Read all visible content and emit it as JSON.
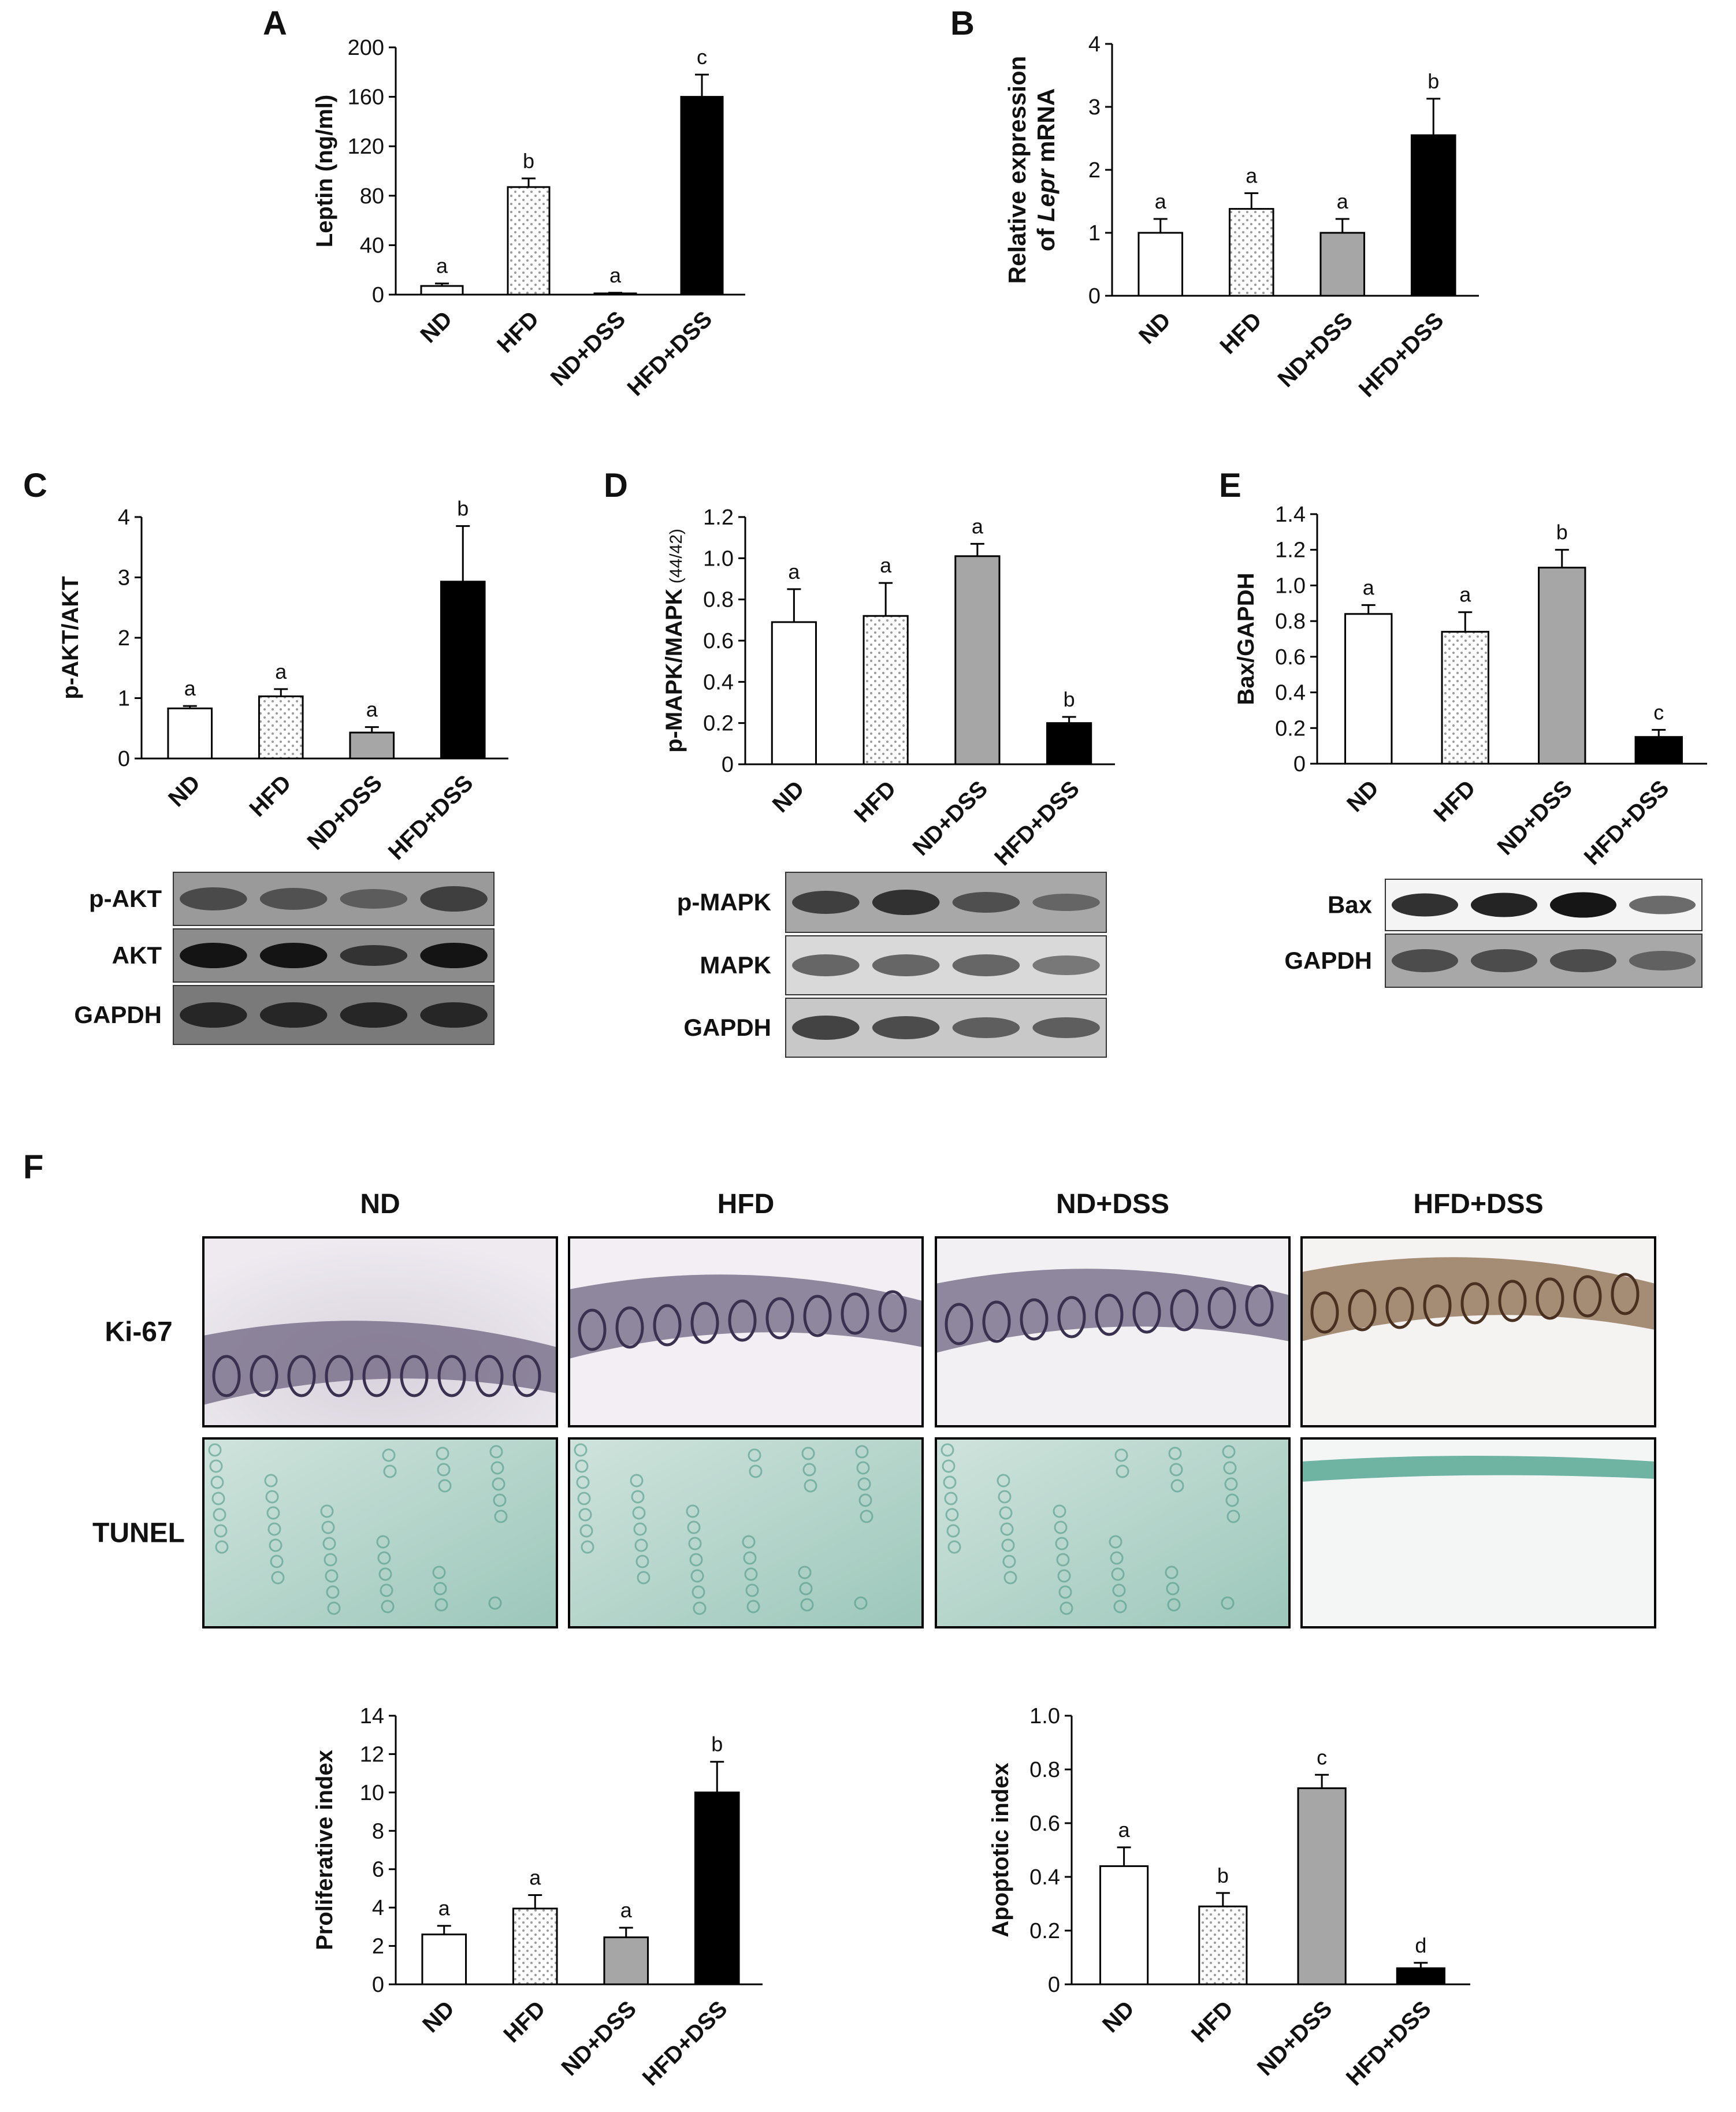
{
  "panels": [
    {
      "id": "A",
      "label": "A"
    },
    {
      "id": "B",
      "label": "B"
    },
    {
      "id": "C",
      "label": "C"
    },
    {
      "id": "D",
      "label": "D"
    },
    {
      "id": "E",
      "label": "E"
    },
    {
      "id": "F",
      "label": "F"
    }
  ],
  "colors": {
    "ND": "#ffffff",
    "HFD": "dotted",
    "ND+DSS": "#a6a6a6",
    "HFD+DSS": "#000000"
  },
  "chart_data": [
    {
      "panel": "A",
      "type": "bar",
      "categories": [
        "ND",
        "HFD",
        "ND+DSS",
        "HFD+DSS"
      ],
      "values": [
        7,
        87,
        1,
        160
      ],
      "errors": [
        2,
        7,
        0.5,
        18
      ],
      "letters": [
        "a",
        "b",
        "a",
        "c"
      ],
      "ylabel": "Leptin (ng/ml)",
      "ylim": [
        0,
        200
      ],
      "yticks": [
        "0",
        "40",
        "80",
        "120",
        "160",
        "200"
      ],
      "grid": false
    },
    {
      "panel": "B",
      "type": "bar",
      "categories": [
        "ND",
        "HFD",
        "ND+DSS",
        "HFD+DSS"
      ],
      "values": [
        1.0,
        1.38,
        1.0,
        2.55
      ],
      "errors": [
        0.22,
        0.25,
        0.22,
        0.58
      ],
      "letters": [
        "a",
        "a",
        "a",
        "b"
      ],
      "ylabel": "Relative expression of Lepr mRNA",
      "ylim": [
        0,
        4
      ],
      "yticks": [
        "0",
        "1",
        "2",
        "3",
        "4"
      ],
      "grid": false
    },
    {
      "panel": "C",
      "type": "bar",
      "categories": [
        "ND",
        "HFD",
        "ND+DSS",
        "HFD+DSS"
      ],
      "values": [
        0.83,
        1.03,
        0.43,
        2.93
      ],
      "errors": [
        0.04,
        0.12,
        0.09,
        0.92
      ],
      "letters": [
        "a",
        "a",
        "a",
        "b"
      ],
      "ylabel": "p-AKT/AKT",
      "ylim": [
        0,
        4
      ],
      "yticks": [
        "0",
        "1",
        "2",
        "3",
        "4"
      ],
      "grid": false
    },
    {
      "panel": "D",
      "type": "bar",
      "categories": [
        "ND",
        "HFD",
        "ND+DSS",
        "HFD+DSS"
      ],
      "values": [
        0.69,
        0.72,
        1.01,
        0.2
      ],
      "errors": [
        0.16,
        0.16,
        0.06,
        0.03
      ],
      "letters": [
        "a",
        "a",
        "a",
        "b"
      ],
      "ylabel": "p-MAPK/MAPK",
      "ylabel_small": "(44/42)",
      "ylim": [
        0,
        1.2
      ],
      "yticks": [
        "0",
        "0.2",
        "0.4",
        "0.6",
        "0.8",
        "1.0",
        "1.2"
      ],
      "grid": false
    },
    {
      "panel": "E",
      "type": "bar",
      "categories": [
        "ND",
        "HFD",
        "ND+DSS",
        "HFD+DSS"
      ],
      "values": [
        0.84,
        0.74,
        1.1,
        0.15
      ],
      "errors": [
        0.05,
        0.11,
        0.1,
        0.04
      ],
      "letters": [
        "a",
        "a",
        "b",
        "c"
      ],
      "ylabel": "Bax/GAPDH",
      "ylim": [
        0,
        1.4
      ],
      "yticks": [
        "0",
        "0.2",
        "0.4",
        "0.6",
        "0.8",
        "1.0",
        "1.2",
        "1.4"
      ],
      "grid": false
    },
    {
      "panel": "F",
      "type": "bar",
      "categories": [
        "ND",
        "HFD",
        "ND+DSS",
        "HFD+DSS"
      ],
      "values": [
        2.6,
        3.95,
        2.45,
        10.0
      ],
      "errors": [
        0.45,
        0.7,
        0.5,
        1.6
      ],
      "letters": [
        "a",
        "a",
        "a",
        "b"
      ],
      "ylabel": "Proliferative index",
      "ylim": [
        0,
        14
      ],
      "yticks": [
        "0",
        "2",
        "4",
        "6",
        "8",
        "10",
        "12",
        "14"
      ],
      "grid": false
    },
    {
      "panel": "F",
      "type": "bar",
      "categories": [
        "ND",
        "HFD",
        "ND+DSS",
        "HFD+DSS"
      ],
      "values": [
        0.44,
        0.29,
        0.73,
        0.06
      ],
      "errors": [
        0.07,
        0.05,
        0.05,
        0.02
      ],
      "letters": [
        "a",
        "b",
        "c",
        "d"
      ],
      "ylabel": "Apoptotic index",
      "ylim": [
        0,
        1.0
      ],
      "yticks": [
        "0",
        "0.2",
        "0.4",
        "0.6",
        "0.8",
        "1.0"
      ],
      "grid": false
    }
  ],
  "blots": [
    {
      "panel": "C",
      "rows": [
        {
          "label": "p-AKT",
          "tone": "#3a3a3a",
          "bg": "#9a9a9a"
        },
        {
          "label": "AKT",
          "tone": "#0e0e0e",
          "bg": "#8c8c8c"
        },
        {
          "label": "GAPDH",
          "tone": "#222222",
          "bg": "#7a7a7a"
        }
      ]
    },
    {
      "panel": "D",
      "rows": [
        {
          "label": "p-MAPK",
          "tone": "#2a2a2a",
          "bg": "#a8a8a8"
        },
        {
          "label": "MAPK",
          "tone": "#444444",
          "bg": "#d9d9d9"
        },
        {
          "label": "GAPDH",
          "tone": "#333333",
          "bg": "#c8c8c8"
        }
      ]
    },
    {
      "panel": "E",
      "rows": [
        {
          "label": "Bax",
          "tone": "#0a0a0a",
          "bg": "#f4f4f4"
        },
        {
          "label": "GAPDH",
          "tone": "#3a3a3a",
          "bg": "#a8a8a8"
        }
      ]
    }
  ],
  "histology": {
    "columns": [
      "ND",
      "HFD",
      "ND+DSS",
      "HFD+DSS"
    ],
    "rows": [
      "Ki-67",
      "TUNEL"
    ]
  }
}
